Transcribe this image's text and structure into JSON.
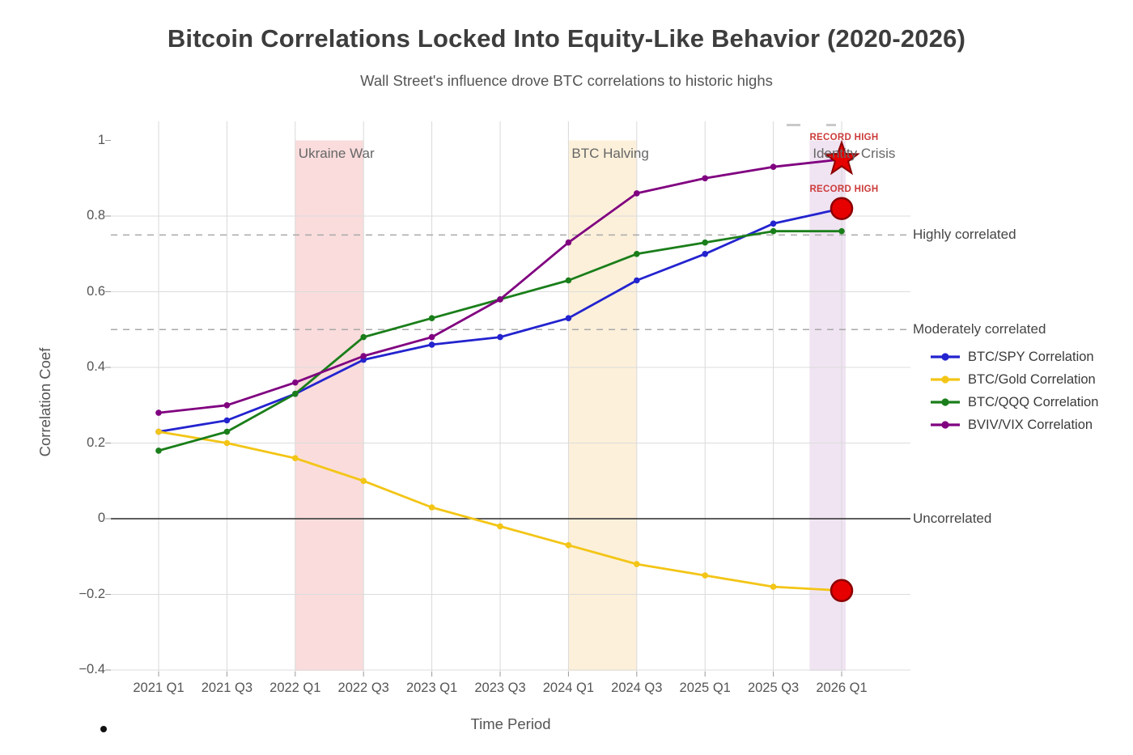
{
  "title": "Bitcoin Correlations Locked Into Equity-Like Behavior (2020-2026)",
  "subtitle": "Wall Street's influence drove BTC correlations to historic highs",
  "chart_data": {
    "type": "line",
    "title": "Bitcoin Correlations Locked Into Equity-Like Behavior (2020-2026)",
    "subtitle": "Wall Street's influence drove BTC correlations to historic highs",
    "xlabel": "Time Period",
    "ylabel": "Correlation Coef",
    "categories": [
      "2021 Q1",
      "2021 Q3",
      "2022 Q1",
      "2022 Q3",
      "2023 Q1",
      "2023 Q3",
      "2024 Q1",
      "2024 Q3",
      "2025 Q1",
      "2025 Q3",
      "2026 Q1"
    ],
    "y_ticks": [
      {
        "value": 1,
        "label": "1"
      },
      {
        "value": 0.8,
        "label": "0.8"
      },
      {
        "value": 0.6,
        "label": "0.6"
      },
      {
        "value": 0.4,
        "label": "0.4"
      },
      {
        "value": 0.2,
        "label": "0.2"
      },
      {
        "value": 0,
        "label": "0"
      },
      {
        "value": -0.2,
        "label": "−0.2"
      },
      {
        "value": -0.4,
        "label": "−0.4"
      }
    ],
    "ylim": [
      -0.42,
      1.05
    ],
    "grid": true,
    "legend_position": "right",
    "series": [
      {
        "name": "BTC/SPY Correlation",
        "color": "#2323CF",
        "values": [
          0.23,
          0.26,
          0.33,
          0.42,
          0.46,
          0.48,
          0.53,
          0.63,
          0.7,
          0.78,
          0.82
        ]
      },
      {
        "name": "BTC/Gold Correlation",
        "color": "#F3C516",
        "values": [
          0.23,
          0.2,
          0.16,
          0.1,
          0.03,
          -0.02,
          -0.07,
          -0.12,
          -0.15,
          -0.18,
          -0.19
        ]
      },
      {
        "name": "BTC/QQQ Correlation",
        "color": "#1A7E1A",
        "values": [
          0.18,
          0.23,
          0.33,
          0.48,
          0.53,
          0.58,
          0.63,
          0.7,
          0.73,
          0.76,
          0.76
        ]
      },
      {
        "name": "BVIV/VIX Correlation",
        "color": "#800080",
        "values": [
          0.28,
          0.3,
          0.36,
          0.43,
          0.48,
          0.58,
          0.73,
          0.86,
          0.9,
          0.93,
          0.95
        ]
      }
    ],
    "bands": [
      {
        "label": "Ukraine War",
        "x_start": "2022 Q1",
        "x_end": "2022 Q3",
        "i0": 2,
        "i1": 3,
        "color": "#FADCDC"
      },
      {
        "label": "BTC Halving",
        "x_start": "2024 Q1",
        "x_end": "2024 Q3",
        "i0": 6,
        "i1": 7,
        "color": "#FCF0DA"
      },
      {
        "label": "Identity Crisis",
        "x_start": "2025 Q4",
        "x_end": "2026 Q1",
        "i0": 9.53,
        "i1": 10.06,
        "color": "#F0E4F2"
      }
    ],
    "ref_lines": [
      {
        "label": "Highly correlated",
        "value": 0.75,
        "style": "dashed"
      },
      {
        "label": "Moderately correlated",
        "value": 0.5,
        "style": "dashed"
      },
      {
        "label": "Uncorrelated",
        "value": 0,
        "style": "solid"
      }
    ],
    "highlights": [
      {
        "label": "RECORD HIGH",
        "series": "BVIV/VIX Correlation",
        "category": "2026 Q1",
        "value": 0.95,
        "marker": "star"
      },
      {
        "label": "RECORD HIGH",
        "series": "BTC/SPY Correlation",
        "category": "2026 Q1",
        "value": 0.82,
        "marker": "circle"
      },
      {
        "label": "",
        "series": "BTC/Gold Correlation",
        "category": "2026 Q1",
        "value": -0.19,
        "marker": "circle"
      }
    ],
    "marker_colors": {
      "fill": "#E60000",
      "stroke": "#8B0000"
    }
  }
}
